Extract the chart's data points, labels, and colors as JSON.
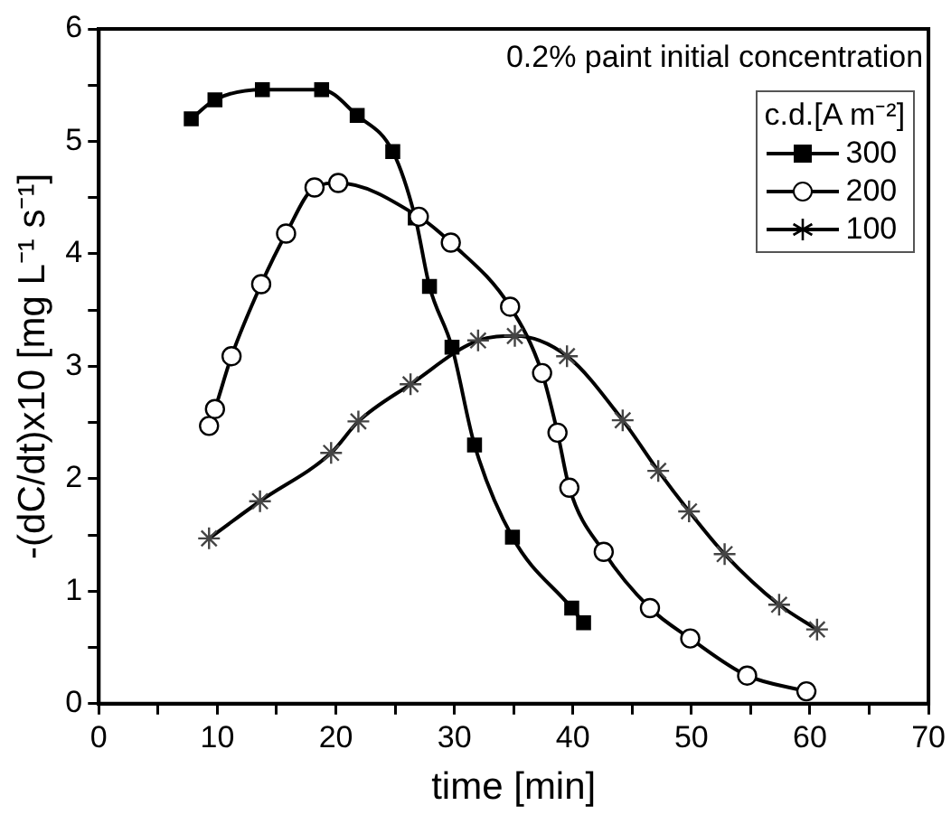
{
  "chart_data": {
    "type": "line",
    "xlabel": "time [min]",
    "ylabel": "-(dC/dt)x10 [mg L⁻¹ s⁻¹]",
    "legend_title": "c.d.[A m⁻²]",
    "annotations": [
      "0.2% paint initial concentration"
    ],
    "xlim": [
      0,
      70
    ],
    "ylim": [
      0,
      6
    ],
    "xticks": [
      0,
      {
        "value": 5,
        "label": null
      },
      10,
      {
        "value": 15,
        "label": null
      },
      20,
      {
        "value": 25,
        "label": null
      },
      30,
      {
        "value": 35,
        "label": null
      },
      40,
      {
        "value": 45,
        "label": null
      },
      50,
      {
        "value": 55,
        "label": null
      },
      60,
      {
        "value": 65,
        "label": null
      },
      70
    ],
    "yticks": [
      0,
      {
        "value": 0.5,
        "label": null
      },
      1,
      {
        "value": 1.5,
        "label": null
      },
      2,
      {
        "value": 2.5,
        "label": null
      },
      3,
      {
        "value": 3.5,
        "label": null
      },
      4,
      {
        "value": 4.5,
        "label": null
      },
      5,
      {
        "value": 5.5,
        "label": null
      },
      6
    ],
    "grid": false,
    "legend": "top right",
    "line_style": "solid",
    "series": [
      {
        "name": "300",
        "color": "#000000",
        "marker": "square",
        "x": [
          7.8,
          9.8,
          13.8,
          18.8,
          21.8,
          24.8,
          26.7,
          27.9,
          29.8,
          31.7,
          34.9,
          39.9,
          40.9
        ],
        "values": [
          5.2,
          5.37,
          5.46,
          5.46,
          5.23,
          4.91,
          4.32,
          3.71,
          3.17,
          2.3,
          1.48,
          0.85,
          0.72
        ]
      },
      {
        "name": "200",
        "color": "#000000",
        "marker": "circle",
        "x": [
          9.3,
          9.8,
          11.2,
          13.7,
          15.8,
          18.2,
          20.2,
          27,
          29.7,
          34.7,
          37.4,
          38.7,
          39.7,
          42.6,
          46.5,
          49.9,
          54.7,
          59.7
        ],
        "values": [
          2.47,
          2.62,
          3.09,
          3.73,
          4.18,
          4.59,
          4.63,
          4.33,
          4.1,
          3.53,
          2.94,
          2.41,
          1.92,
          1.35,
          0.85,
          0.58,
          0.25,
          0.11
        ]
      },
      {
        "name": "100",
        "color": "#000000",
        "marker": "cross",
        "x": [
          9.3,
          13.6,
          19.6,
          21.9,
          26.3,
          32,
          35.1,
          39.5,
          44.2,
          47.2,
          49.8,
          52.8,
          57.4,
          60.6
        ],
        "values": [
          1.47,
          1.8,
          2.23,
          2.51,
          2.84,
          3.23,
          3.27,
          3.09,
          2.52,
          2.07,
          1.71,
          1.33,
          0.88,
          0.66
        ]
      }
    ]
  }
}
